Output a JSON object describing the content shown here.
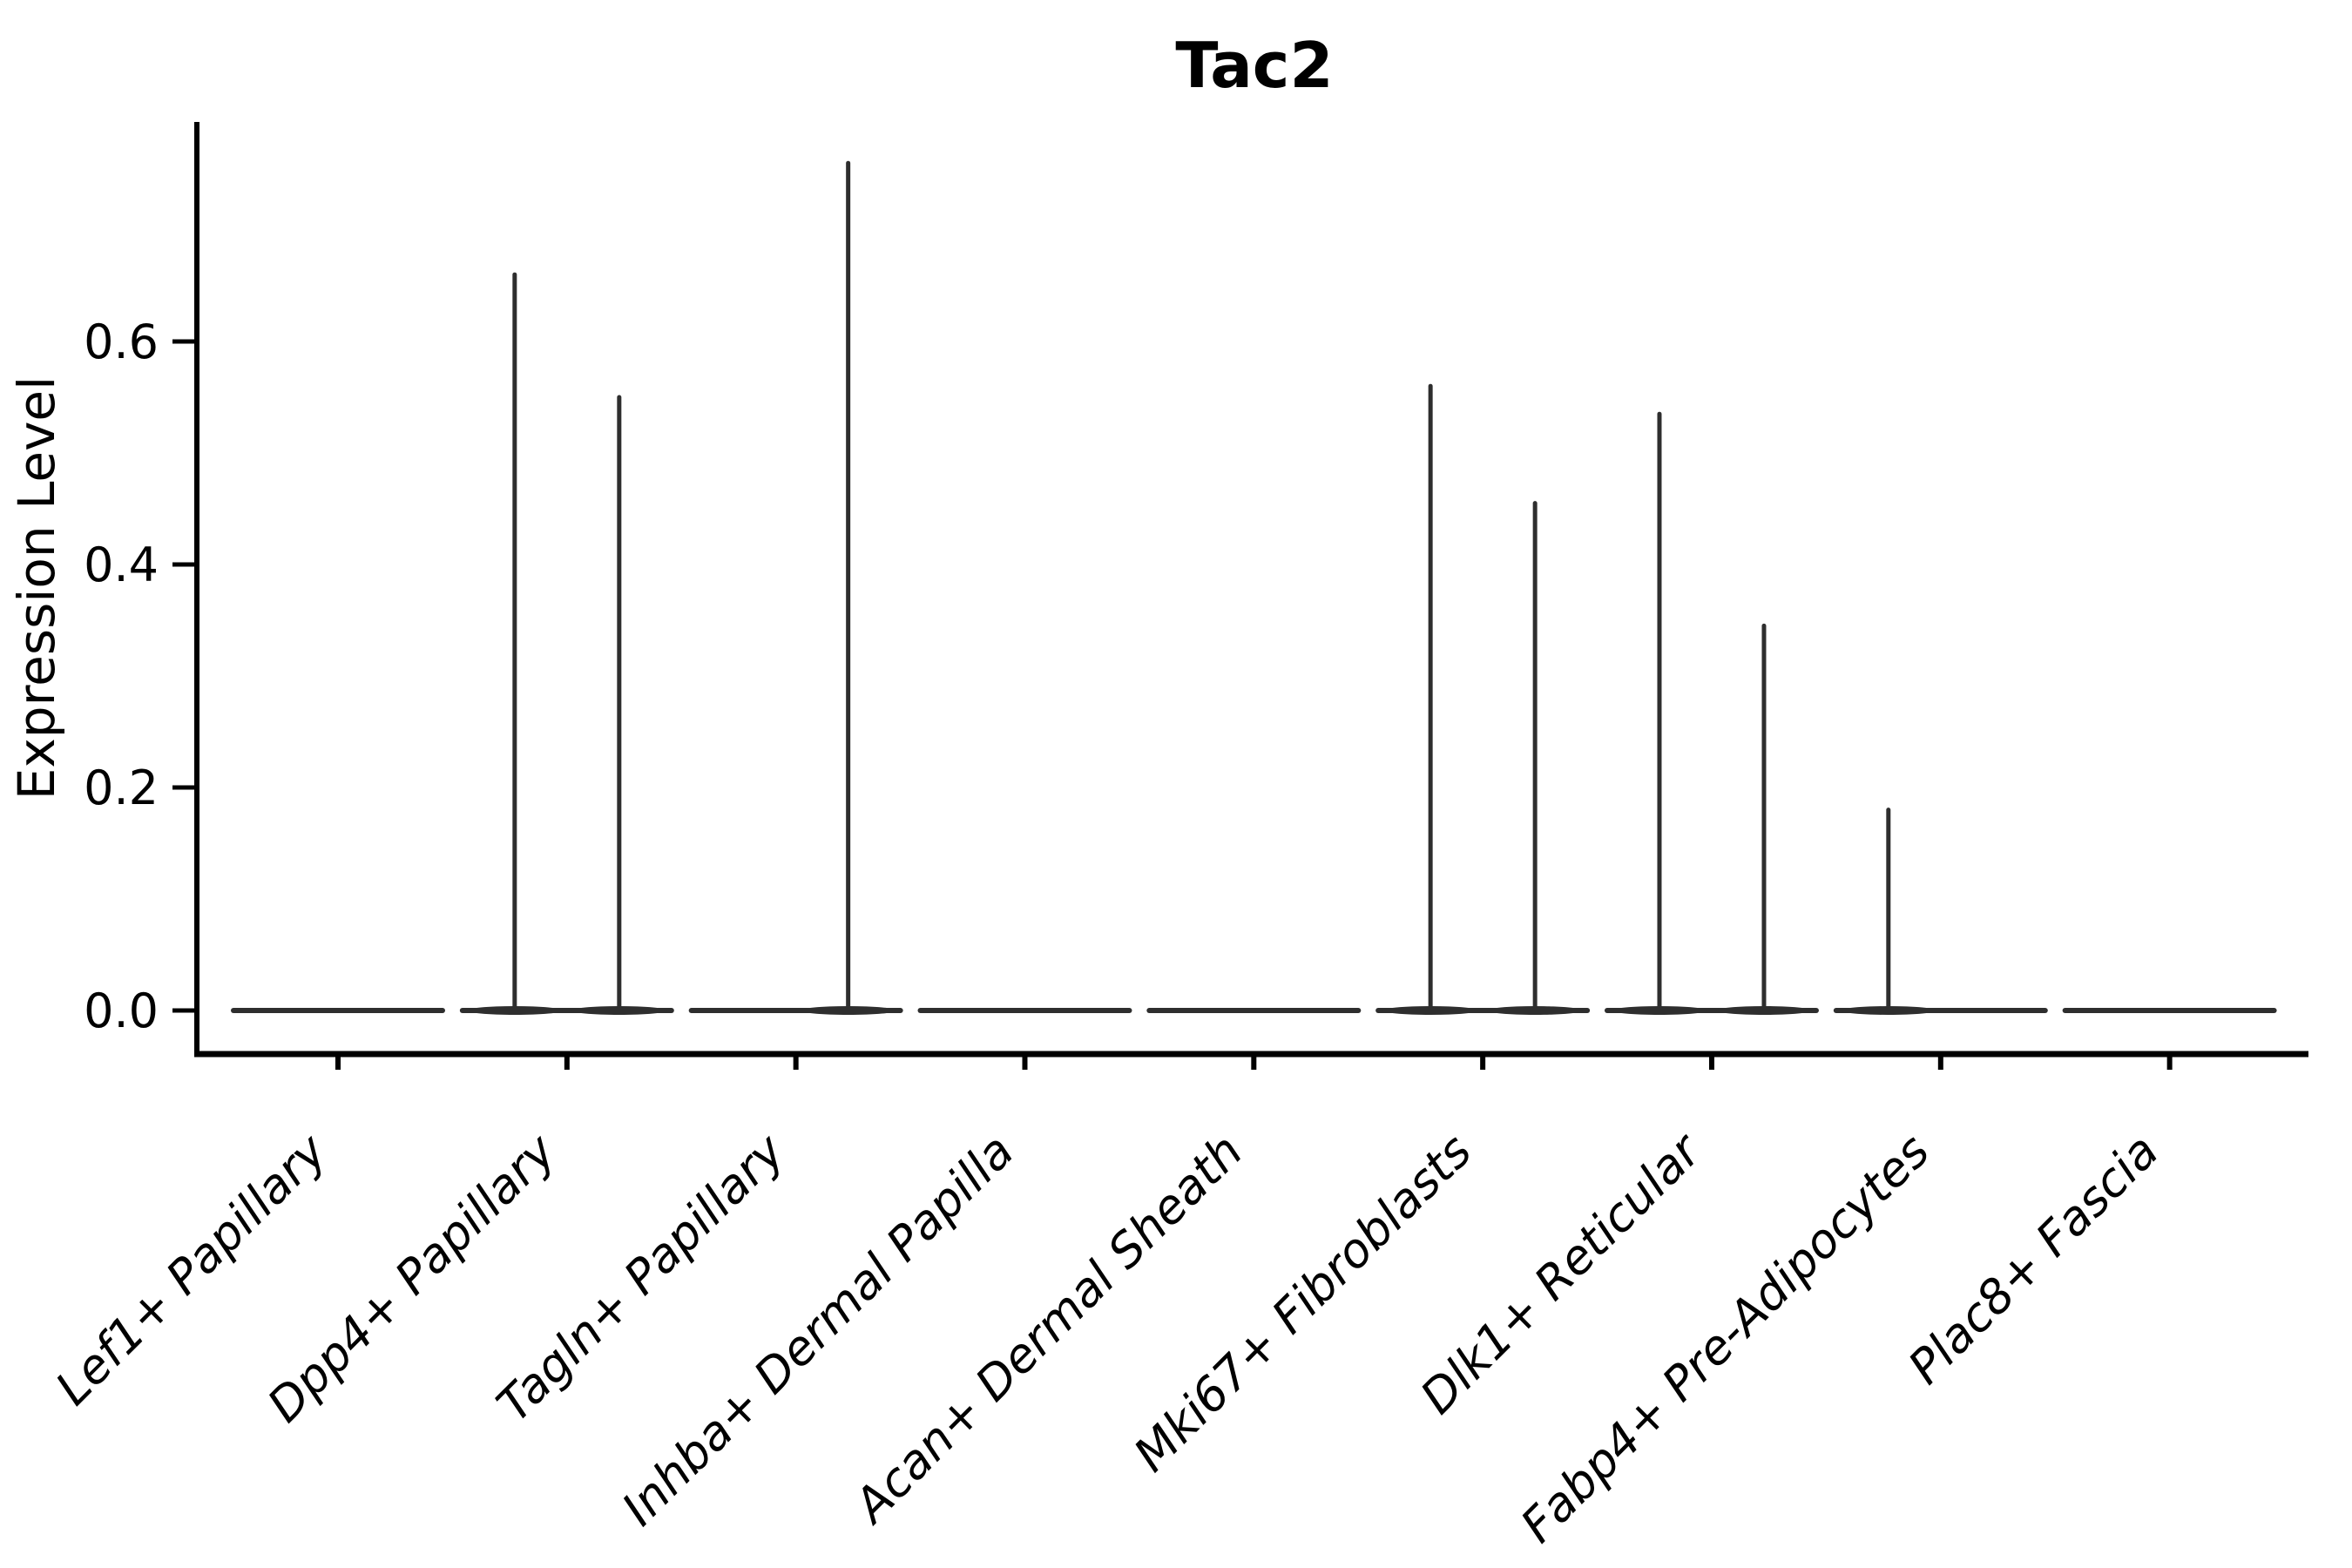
{
  "chart_data": {
    "type": "violin",
    "title": "Tac2",
    "xlabel": "",
    "ylabel": "Expression Level",
    "yticks": [
      "0.0",
      "0.2",
      "0.4",
      "0.6"
    ],
    "ylim": [
      0,
      0.8
    ],
    "grid": false,
    "legend": null,
    "categories": [
      "Lef1+ Papillary",
      "Dpp4+ Papillary",
      "Tagln+ Papillary",
      "Inhba+ Dermal Papilla",
      "Acan+ Dermal Sheath",
      "Mki67+ Fibroblasts",
      "Dlk1+ Reticular",
      "Fabp4+ Pre-Adipocytes",
      "Plac8+ Fascia"
    ],
    "description": "Violin plot of Tac2 expression per fibroblast cluster; nearly all cells at 0 (flat violins), with thin density spikes up to the max expressing cells in some clusters. Two side-by-side sub-violins per category.",
    "violins": [
      {
        "category": "Lef1+ Papillary",
        "baseline_value": 0,
        "spikes": []
      },
      {
        "category": "Dpp4+ Papillary",
        "baseline_value": 0,
        "spikes": [
          {
            "side": "left",
            "max": 0.66
          },
          {
            "side": "right",
            "max": 0.55
          }
        ]
      },
      {
        "category": "Tagln+ Papillary",
        "baseline_value": 0,
        "spikes": [
          {
            "side": "right",
            "max": 0.76
          }
        ]
      },
      {
        "category": "Inhba+ Dermal Papilla",
        "baseline_value": 0,
        "spikes": []
      },
      {
        "category": "Acan+ Dermal Sheath",
        "baseline_value": 0,
        "spikes": []
      },
      {
        "category": "Mki67+ Fibroblasts",
        "baseline_value": 0,
        "spikes": [
          {
            "side": "left",
            "max": 0.56
          },
          {
            "side": "right",
            "max": 0.455
          }
        ]
      },
      {
        "category": "Dlk1+ Reticular",
        "baseline_value": 0,
        "spikes": [
          {
            "side": "left",
            "max": 0.535
          },
          {
            "side": "right",
            "max": 0.345
          }
        ]
      },
      {
        "category": "Fabp4+ Pre-Adipocytes",
        "baseline_value": 0,
        "spikes": [
          {
            "side": "left",
            "max": 0.18
          }
        ]
      },
      {
        "category": "Plac8+ Fascia",
        "baseline_value": 0,
        "spikes": []
      }
    ],
    "colors": {
      "violin_stroke": "#2e2e2e",
      "axis": "#000000",
      "text": "#000000",
      "background": "#ffffff"
    }
  }
}
